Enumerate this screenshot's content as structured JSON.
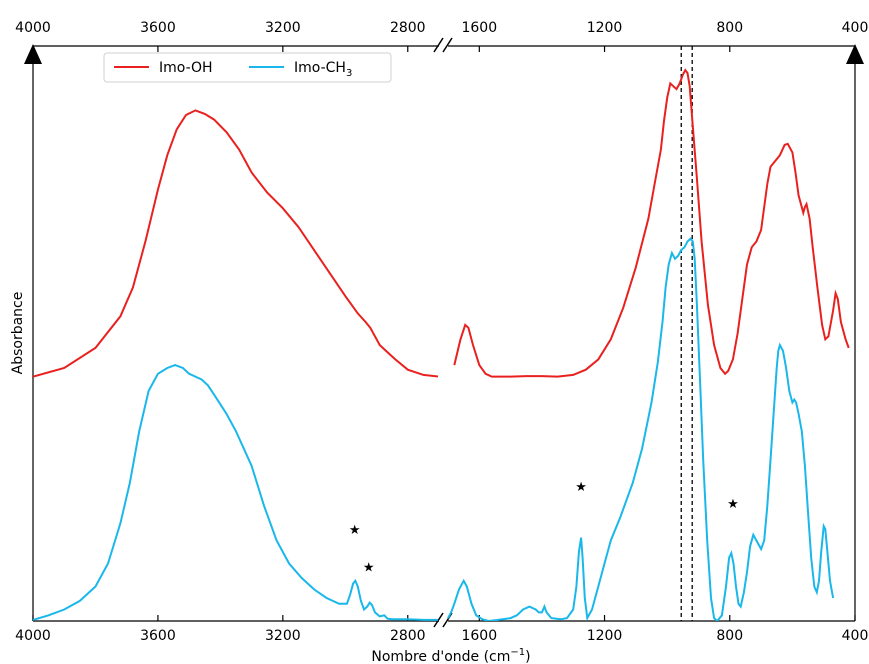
{
  "chart_data": {
    "type": "line",
    "title": "",
    "xlabel_main": "Nombre d'onde (cm",
    "xlabel_sup": "−1",
    "xlabel_close": ")",
    "ylabel": "Absorbance",
    "x_axis_break": true,
    "x_reversed": true,
    "left_panel_range": [
      4000,
      2700
    ],
    "right_panel_range": [
      1700,
      400
    ],
    "bottom_left_ticks": [
      "4000",
      "3600",
      "3200",
      "2800"
    ],
    "bottom_right_ticks": [
      "1600",
      "1200",
      "800",
      "400"
    ],
    "top_left_ticks": [
      "4000",
      "3600",
      "3200",
      "2800"
    ],
    "top_right_ticks": [
      "1600",
      "1200",
      "800",
      "400"
    ],
    "dashed_lines_x": [
      955,
      920
    ],
    "legend": {
      "placement": "top-left",
      "entries": [
        {
          "label": "Imo-OH",
          "color": "#e8211f"
        },
        {
          "label": "Imo-CH",
          "sub": "3",
          "color": "#1ab7ea"
        }
      ]
    },
    "star_symbol": "★",
    "star_markers": [
      {
        "x": 2970,
        "y": 0.16
      },
      {
        "x": 2925,
        "y": 0.095
      },
      {
        "x": 1275,
        "y": 0.235
      },
      {
        "x": 790,
        "y": 0.205
      }
    ],
    "series": [
      {
        "name": "Imo-OH",
        "color": "#e8211f",
        "left": [
          [
            4000,
            0.425
          ],
          [
            3900,
            0.44
          ],
          [
            3800,
            0.475
          ],
          [
            3720,
            0.53
          ],
          [
            3680,
            0.58
          ],
          [
            3640,
            0.66
          ],
          [
            3600,
            0.75
          ],
          [
            3570,
            0.81
          ],
          [
            3540,
            0.855
          ],
          [
            3510,
            0.88
          ],
          [
            3480,
            0.888
          ],
          [
            3450,
            0.882
          ],
          [
            3420,
            0.872
          ],
          [
            3380,
            0.85
          ],
          [
            3340,
            0.82
          ],
          [
            3300,
            0.78
          ],
          [
            3250,
            0.745
          ],
          [
            3200,
            0.718
          ],
          [
            3150,
            0.685
          ],
          [
            3100,
            0.645
          ],
          [
            3050,
            0.605
          ],
          [
            3000,
            0.565
          ],
          [
            2960,
            0.535
          ],
          [
            2935,
            0.52
          ],
          [
            2920,
            0.51
          ],
          [
            2890,
            0.48
          ],
          [
            2860,
            0.465
          ],
          [
            2840,
            0.455
          ],
          [
            2800,
            0.437
          ],
          [
            2750,
            0.428
          ],
          [
            2700,
            0.425
          ]
        ],
        "right": [
          [
            1680,
            0.445
          ],
          [
            1660,
            0.49
          ],
          [
            1645,
            0.515
          ],
          [
            1635,
            0.51
          ],
          [
            1620,
            0.48
          ],
          [
            1600,
            0.445
          ],
          [
            1580,
            0.43
          ],
          [
            1560,
            0.425
          ],
          [
            1500,
            0.425
          ],
          [
            1450,
            0.426
          ],
          [
            1400,
            0.426
          ],
          [
            1350,
            0.425
          ],
          [
            1300,
            0.428
          ],
          [
            1260,
            0.437
          ],
          [
            1220,
            0.455
          ],
          [
            1180,
            0.49
          ],
          [
            1140,
            0.545
          ],
          [
            1100,
            0.615
          ],
          [
            1060,
            0.7
          ],
          [
            1040,
            0.76
          ],
          [
            1020,
            0.82
          ],
          [
            1010,
            0.87
          ],
          [
            1000,
            0.91
          ],
          [
            990,
            0.935
          ],
          [
            980,
            0.93
          ],
          [
            970,
            0.925
          ],
          [
            960,
            0.935
          ],
          [
            950,
            0.95
          ],
          [
            942,
            0.958
          ],
          [
            935,
            0.953
          ],
          [
            928,
            0.93
          ],
          [
            918,
            0.86
          ],
          [
            905,
            0.77
          ],
          [
            890,
            0.66
          ],
          [
            870,
            0.55
          ],
          [
            850,
            0.48
          ],
          [
            830,
            0.44
          ],
          [
            815,
            0.43
          ],
          [
            805,
            0.435
          ],
          [
            790,
            0.455
          ],
          [
            775,
            0.5
          ],
          [
            760,
            0.56
          ],
          [
            745,
            0.62
          ],
          [
            730,
            0.65
          ],
          [
            715,
            0.66
          ],
          [
            700,
            0.68
          ],
          [
            690,
            0.72
          ],
          [
            680,
            0.76
          ],
          [
            670,
            0.79
          ],
          [
            655,
            0.8
          ],
          [
            640,
            0.81
          ],
          [
            625,
            0.828
          ],
          [
            615,
            0.83
          ],
          [
            600,
            0.815
          ],
          [
            590,
            0.78
          ],
          [
            580,
            0.74
          ],
          [
            575,
            0.73
          ],
          [
            565,
            0.71
          ],
          [
            560,
            0.72
          ],
          [
            555,
            0.725
          ],
          [
            545,
            0.7
          ],
          [
            535,
            0.65
          ],
          [
            520,
            0.58
          ],
          [
            505,
            0.515
          ],
          [
            495,
            0.49
          ],
          [
            485,
            0.495
          ],
          [
            470,
            0.54
          ],
          [
            462,
            0.57
          ],
          [
            455,
            0.56
          ],
          [
            445,
            0.52
          ],
          [
            430,
            0.49
          ],
          [
            420,
            0.475
          ]
        ]
      },
      {
        "name": "Imo-CH3",
        "color": "#1ab7ea",
        "left": [
          [
            4000,
            0.002
          ],
          [
            3950,
            0.01
          ],
          [
            3900,
            0.02
          ],
          [
            3850,
            0.035
          ],
          [
            3800,
            0.06
          ],
          [
            3760,
            0.1
          ],
          [
            3720,
            0.17
          ],
          [
            3690,
            0.24
          ],
          [
            3660,
            0.33
          ],
          [
            3630,
            0.4
          ],
          [
            3600,
            0.43
          ],
          [
            3570,
            0.44
          ],
          [
            3545,
            0.445
          ],
          [
            3520,
            0.44
          ],
          [
            3500,
            0.43
          ],
          [
            3480,
            0.425
          ],
          [
            3460,
            0.42
          ],
          [
            3440,
            0.41
          ],
          [
            3410,
            0.385
          ],
          [
            3380,
            0.36
          ],
          [
            3350,
            0.33
          ],
          [
            3300,
            0.27
          ],
          [
            3260,
            0.2
          ],
          [
            3220,
            0.14
          ],
          [
            3180,
            0.1
          ],
          [
            3140,
            0.075
          ],
          [
            3100,
            0.055
          ],
          [
            3060,
            0.04
          ],
          [
            3020,
            0.03
          ],
          [
            2995,
            0.03
          ],
          [
            2985,
            0.045
          ],
          [
            2975,
            0.065
          ],
          [
            2968,
            0.07
          ],
          [
            2960,
            0.06
          ],
          [
            2950,
            0.035
          ],
          [
            2940,
            0.02
          ],
          [
            2930,
            0.025
          ],
          [
            2922,
            0.032
          ],
          [
            2915,
            0.028
          ],
          [
            2905,
            0.015
          ],
          [
            2890,
            0.008
          ],
          [
            2875,
            0.01
          ],
          [
            2865,
            0.004
          ],
          [
            2850,
            0.003
          ],
          [
            2800,
            0.003
          ],
          [
            2750,
            0.002
          ],
          [
            2700,
            0.002
          ]
        ],
        "right": [
          [
            1700,
            0.005
          ],
          [
            1690,
            0.015
          ],
          [
            1680,
            0.03
          ],
          [
            1665,
            0.055
          ],
          [
            1650,
            0.07
          ],
          [
            1640,
            0.06
          ],
          [
            1625,
            0.03
          ],
          [
            1610,
            0.01
          ],
          [
            1590,
            0.003
          ],
          [
            1570,
            0.0
          ],
          [
            1540,
            0.002
          ],
          [
            1500,
            0.005
          ],
          [
            1480,
            0.01
          ],
          [
            1460,
            0.02
          ],
          [
            1440,
            0.025
          ],
          [
            1420,
            0.02
          ],
          [
            1410,
            0.015
          ],
          [
            1400,
            0.015
          ],
          [
            1392,
            0.025
          ],
          [
            1385,
            0.015
          ],
          [
            1370,
            0.005
          ],
          [
            1340,
            0.003
          ],
          [
            1320,
            0.005
          ],
          [
            1300,
            0.02
          ],
          [
            1290,
            0.06
          ],
          [
            1282,
            0.12
          ],
          [
            1275,
            0.145
          ],
          [
            1270,
            0.11
          ],
          [
            1263,
            0.04
          ],
          [
            1255,
            0.005
          ],
          [
            1240,
            0.02
          ],
          [
            1220,
            0.06
          ],
          [
            1200,
            0.1
          ],
          [
            1180,
            0.14
          ],
          [
            1150,
            0.18
          ],
          [
            1110,
            0.24
          ],
          [
            1080,
            0.3
          ],
          [
            1050,
            0.38
          ],
          [
            1030,
            0.45
          ],
          [
            1015,
            0.52
          ],
          [
            1005,
            0.58
          ],
          [
            995,
            0.62
          ],
          [
            985,
            0.64
          ],
          [
            975,
            0.63
          ],
          [
            965,
            0.635
          ],
          [
            955,
            0.645
          ],
          [
            945,
            0.65
          ],
          [
            935,
            0.66
          ],
          [
            925,
            0.665
          ],
          [
            918,
            0.66
          ],
          [
            912,
            0.63
          ],
          [
            905,
            0.55
          ],
          [
            895,
            0.42
          ],
          [
            885,
            0.28
          ],
          [
            872,
            0.14
          ],
          [
            860,
            0.04
          ],
          [
            850,
            0.005
          ],
          [
            840,
            0.0
          ],
          [
            825,
            0.01
          ],
          [
            812,
            0.06
          ],
          [
            802,
            0.11
          ],
          [
            795,
            0.118
          ],
          [
            788,
            0.1
          ],
          [
            780,
            0.06
          ],
          [
            772,
            0.03
          ],
          [
            765,
            0.025
          ],
          [
            755,
            0.05
          ],
          [
            745,
            0.085
          ],
          [
            735,
            0.13
          ],
          [
            725,
            0.15
          ],
          [
            715,
            0.14
          ],
          [
            700,
            0.125
          ],
          [
            690,
            0.14
          ],
          [
            680,
            0.2
          ],
          [
            670,
            0.28
          ],
          [
            660,
            0.36
          ],
          [
            650,
            0.44
          ],
          [
            645,
            0.47
          ],
          [
            640,
            0.48
          ],
          [
            630,
            0.47
          ],
          [
            620,
            0.44
          ],
          [
            610,
            0.4
          ],
          [
            600,
            0.38
          ],
          [
            594,
            0.385
          ],
          [
            588,
            0.38
          ],
          [
            580,
            0.36
          ],
          [
            570,
            0.33
          ],
          [
            560,
            0.27
          ],
          [
            550,
            0.19
          ],
          [
            540,
            0.11
          ],
          [
            530,
            0.06
          ],
          [
            522,
            0.05
          ],
          [
            515,
            0.07
          ],
          [
            508,
            0.12
          ],
          [
            500,
            0.165
          ],
          [
            495,
            0.16
          ],
          [
            488,
            0.12
          ],
          [
            480,
            0.07
          ],
          [
            470,
            0.04
          ]
        ]
      }
    ]
  }
}
